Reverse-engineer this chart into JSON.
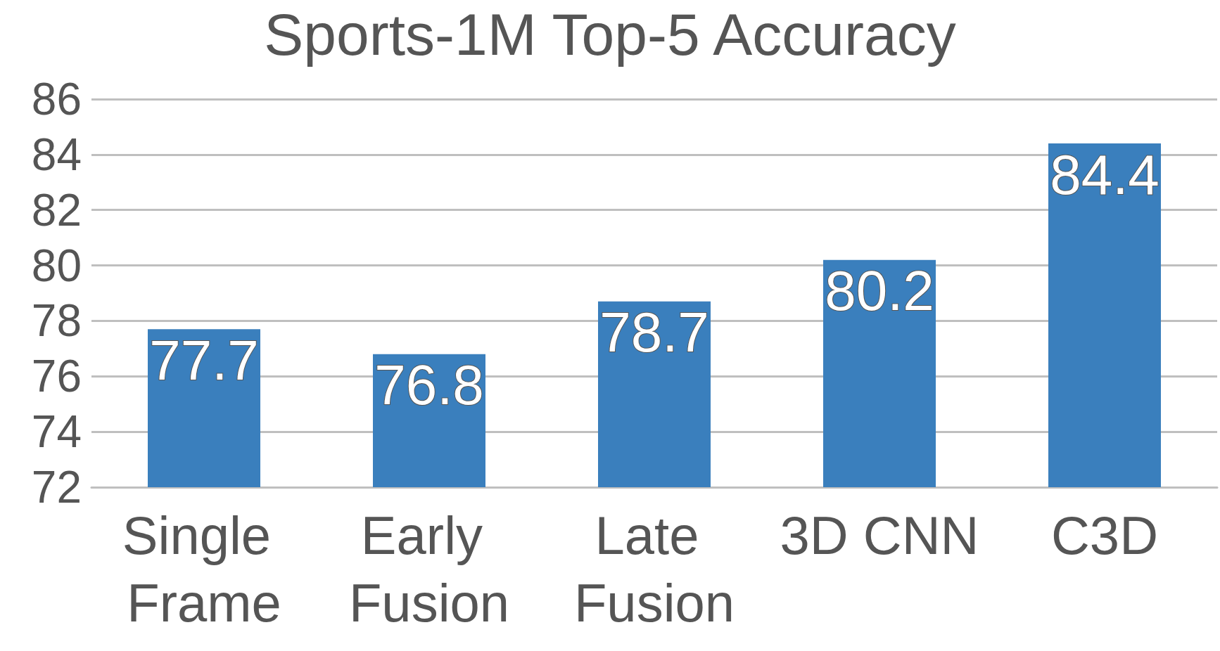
{
  "chart_data": {
    "type": "bar",
    "title": "Sports-1M Top-5 Accuracy",
    "categories": [
      "Single Frame",
      "Early Fusion",
      "Late Fusion",
      "3D CNN",
      "C3D"
    ],
    "values": [
      77.7,
      76.8,
      78.7,
      80.2,
      84.4
    ],
    "color": "#3a7fbd",
    "ylim": [
      72,
      86
    ],
    "yticks": [
      72,
      74,
      76,
      78,
      80,
      82,
      84,
      86
    ],
    "grid": true,
    "data_labels": true
  }
}
